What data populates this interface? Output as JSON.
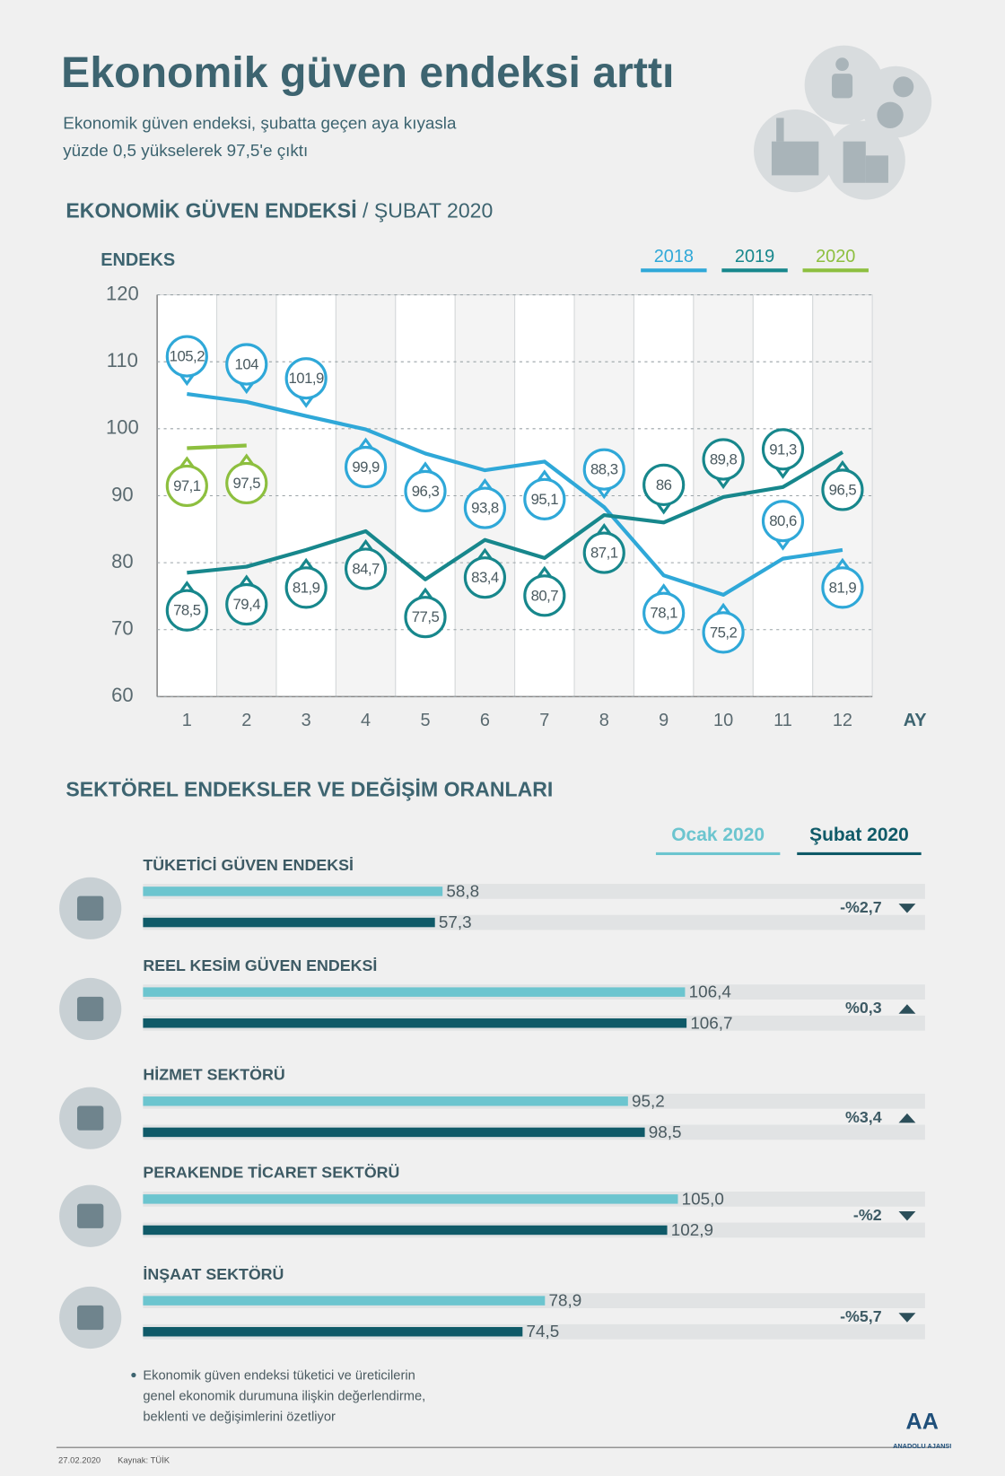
{
  "header": {
    "title": "Ekonomik güven endeksi arttı",
    "subtitle": [
      "Ekonomik güven endeksi, şubatta geçen aya kıyasla",
      "yüzde 0,5 yükselerek 97,5'e çıktı"
    ]
  },
  "chart_data": [
    {
      "type": "line",
      "title": "EKONOMİK GÜVEN ENDEKSİ",
      "subtitle": "/ ŞUBAT 2020",
      "y_label": "ENDEKS",
      "x_label": "AY",
      "categories": [
        "1",
        "2",
        "3",
        "4",
        "5",
        "6",
        "7",
        "8",
        "9",
        "10",
        "11",
        "12"
      ],
      "ylim": [
        60,
        120
      ],
      "yticks": [
        60,
        70,
        80,
        90,
        100,
        110,
        120
      ],
      "grid": true,
      "series": [
        {
          "name": "2018",
          "color": "#2fa8d8",
          "values": [
            105.2,
            104,
            101.9,
            99.9,
            96.3,
            93.8,
            95.1,
            88.3,
            78.1,
            75.2,
            80.6,
            81.9
          ],
          "value_labels": [
            "105,2",
            "104",
            "101,9",
            "99,9",
            "96,3",
            "93,8",
            "95,1",
            "88,3",
            "78,1",
            "75,2",
            "80,6",
            "81,9"
          ]
        },
        {
          "name": "2019",
          "color": "#17878c",
          "values": [
            78.5,
            79.4,
            81.9,
            84.7,
            77.5,
            83.4,
            80.7,
            87.1,
            86,
            89.8,
            91.3,
            96.5
          ],
          "value_labels": [
            "78,5",
            "79,4",
            "81,9",
            "84,7",
            "77,5",
            "83,4",
            "80,7",
            "87,1",
            "86",
            "89,8",
            "91,3",
            "96,5"
          ]
        },
        {
          "name": "2020",
          "color": "#8dbf3f",
          "values": [
            97.1,
            97.5,
            null,
            null,
            null,
            null,
            null,
            null,
            null,
            null,
            null,
            null
          ],
          "value_labels": [
            "97,1",
            "97,5",
            null,
            null,
            null,
            null,
            null,
            null,
            null,
            null,
            null,
            null
          ]
        }
      ]
    },
    {
      "type": "hbar",
      "title": "SEKTÖREL ENDEKSLER VE DEĞİŞİM ORANLARI",
      "categories": [
        "TÜKETİCİ GÜVEN ENDEKSİ",
        "REEL KESİM GÜVEN ENDEKSİ",
        "HİZMET SEKTÖRÜ",
        "PERAKENDE TİCARET SEKTÖRÜ",
        "İNŞAAT SEKTÖRÜ"
      ],
      "xlim": [
        0,
        150
      ],
      "series": [
        {
          "name": "Ocak 2020",
          "color": "#6cc5cf",
          "values": [
            58.8,
            106.4,
            95.2,
            105.0,
            78.9
          ],
          "value_labels": [
            "58,8",
            "106,4",
            "95,2",
            "105,0",
            "78,9"
          ]
        },
        {
          "name": "Şubat 2020",
          "color": "#0f5a68",
          "values": [
            57.3,
            106.7,
            98.5,
            102.9,
            74.5
          ],
          "value_labels": [
            "57,3",
            "106,7",
            "98,5",
            "102,9",
            "74,5"
          ]
        }
      ],
      "changes": [
        {
          "value": -2.7,
          "label": "-%2,7"
        },
        {
          "value": 0.3,
          "label": "%0,3"
        },
        {
          "value": 3.4,
          "label": "%3,4"
        },
        {
          "value": -2,
          "label": "-%2"
        },
        {
          "value": -5.7,
          "label": "-%5,7"
        }
      ]
    }
  ],
  "footer": {
    "note": [
      "Ekonomik güven endeksi tüketici ve üreticilerin",
      "genel ekonomik durumuna ilişkin değerlendirme,",
      "beklenti ve değişimlerini özetliyor"
    ],
    "date": "27.02.2020",
    "source": "Kaynak: TÜİK",
    "logo": "AA",
    "agency": "ANADOLU AJANSI"
  }
}
